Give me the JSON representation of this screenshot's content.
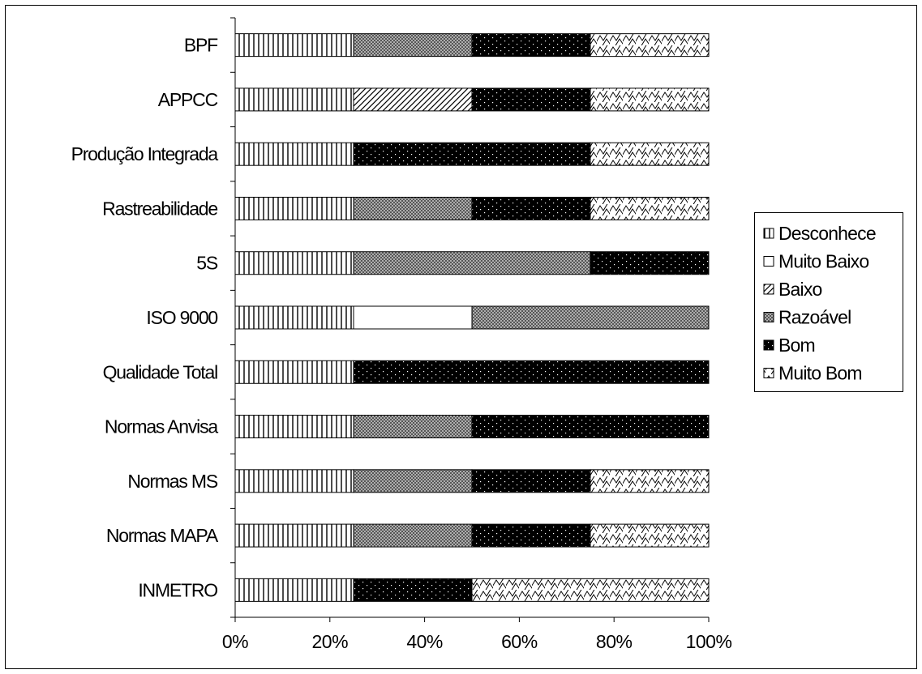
{
  "chart_data": {
    "type": "bar",
    "orientation": "horizontal",
    "stacked": "percent",
    "title": "",
    "xlabel": "",
    "ylabel": "",
    "xlim": [
      0,
      100
    ],
    "x_ticks": [
      "0%",
      "20%",
      "40%",
      "60%",
      "80%",
      "100%"
    ],
    "grid": false,
    "legend_position": "right",
    "categories": [
      "BPF",
      "APPCC",
      "Produção Integrada",
      "Rastreabilidade",
      "5S",
      "ISO 9000",
      "Qualidade Total",
      "Normas Anvisa",
      "Normas MS",
      "Normas MAPA",
      "INMETRO"
    ],
    "series": [
      {
        "name": "Desconhece",
        "pattern": "vertical-lines",
        "values": [
          25,
          25,
          25,
          25,
          25,
          25,
          25,
          25,
          25,
          25,
          25
        ]
      },
      {
        "name": "Muito Baixo",
        "pattern": "blank",
        "values": [
          0,
          0,
          0,
          0,
          0,
          25,
          0,
          0,
          0,
          0,
          0
        ]
      },
      {
        "name": "Baixo",
        "pattern": "diagonal-lines",
        "values": [
          0,
          25,
          0,
          0,
          0,
          0,
          0,
          0,
          0,
          0,
          0
        ]
      },
      {
        "name": "Razoável",
        "pattern": "crosshatch",
        "values": [
          25,
          0,
          0,
          25,
          50,
          50,
          0,
          25,
          25,
          25,
          0
        ]
      },
      {
        "name": "Bom",
        "pattern": "black-dots",
        "values": [
          25,
          25,
          50,
          25,
          25,
          0,
          75,
          50,
          25,
          25,
          25
        ]
      },
      {
        "name": "Muito Bom",
        "pattern": "zigzag",
        "values": [
          25,
          25,
          25,
          25,
          0,
          0,
          0,
          0,
          25,
          25,
          50
        ]
      }
    ]
  }
}
